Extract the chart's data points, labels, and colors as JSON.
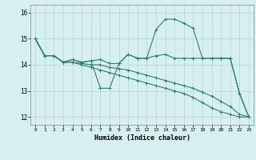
{
  "xlabel": "Humidex (Indice chaleur)",
  "bg_color": "#d6f0f0",
  "line_color": "#2e7d6e",
  "grid_color": "#c0d8d8",
  "xlim": [
    -0.5,
    23.5
  ],
  "ylim": [
    11.7,
    16.3
  ],
  "yticks": [
    12,
    13,
    14,
    15,
    16
  ],
  "xticks": [
    0,
    1,
    2,
    3,
    4,
    5,
    6,
    7,
    8,
    9,
    10,
    11,
    12,
    13,
    14,
    15,
    16,
    17,
    18,
    19,
    20,
    21,
    22,
    23
  ],
  "series": [
    {
      "x": [
        0,
        1,
        2,
        3,
        4,
        5,
        6,
        7,
        8,
        9,
        10,
        11,
        12,
        13,
        14,
        15,
        16,
        17,
        18,
        19,
        20,
        21,
        22,
        23
      ],
      "y": [
        15.0,
        14.35,
        14.35,
        14.1,
        14.2,
        14.1,
        14.15,
        14.2,
        14.05,
        14.05,
        14.4,
        14.25,
        14.25,
        15.35,
        15.75,
        15.75,
        15.6,
        15.4,
        14.25,
        14.25,
        14.25,
        14.25,
        12.9,
        12.0
      ]
    },
    {
      "x": [
        0,
        1,
        2,
        3,
        4,
        5,
        6,
        7,
        8,
        9,
        10,
        11,
        12,
        13,
        14,
        15,
        16,
        17,
        18,
        19,
        20,
        21,
        22,
        23
      ],
      "y": [
        15.0,
        14.35,
        14.35,
        14.1,
        14.2,
        14.1,
        14.15,
        13.1,
        13.1,
        14.05,
        14.4,
        14.25,
        14.25,
        14.35,
        14.4,
        14.25,
        14.25,
        14.25,
        14.25,
        14.25,
        14.25,
        14.25,
        12.9,
        12.0
      ]
    },
    {
      "x": [
        0,
        1,
        2,
        3,
        4,
        5,
        6,
        7,
        8,
        9,
        10,
        11,
        12,
        13,
        14,
        15,
        16,
        17,
        18,
        19,
        20,
        21,
        22,
        23
      ],
      "y": [
        15.0,
        14.35,
        14.35,
        14.1,
        14.1,
        14.05,
        14.0,
        14.0,
        13.9,
        13.85,
        13.8,
        13.7,
        13.6,
        13.5,
        13.4,
        13.3,
        13.2,
        13.1,
        12.95,
        12.8,
        12.6,
        12.4,
        12.1,
        12.0
      ]
    },
    {
      "x": [
        0,
        1,
        2,
        3,
        4,
        5,
        6,
        7,
        8,
        9,
        10,
        11,
        12,
        13,
        14,
        15,
        16,
        17,
        18,
        19,
        20,
        21,
        22,
        23
      ],
      "y": [
        15.0,
        14.35,
        14.35,
        14.1,
        14.1,
        14.0,
        13.9,
        13.8,
        13.7,
        13.6,
        13.5,
        13.4,
        13.3,
        13.2,
        13.1,
        13.0,
        12.9,
        12.75,
        12.55,
        12.35,
        12.2,
        12.1,
        12.0,
        12.0
      ]
    }
  ]
}
